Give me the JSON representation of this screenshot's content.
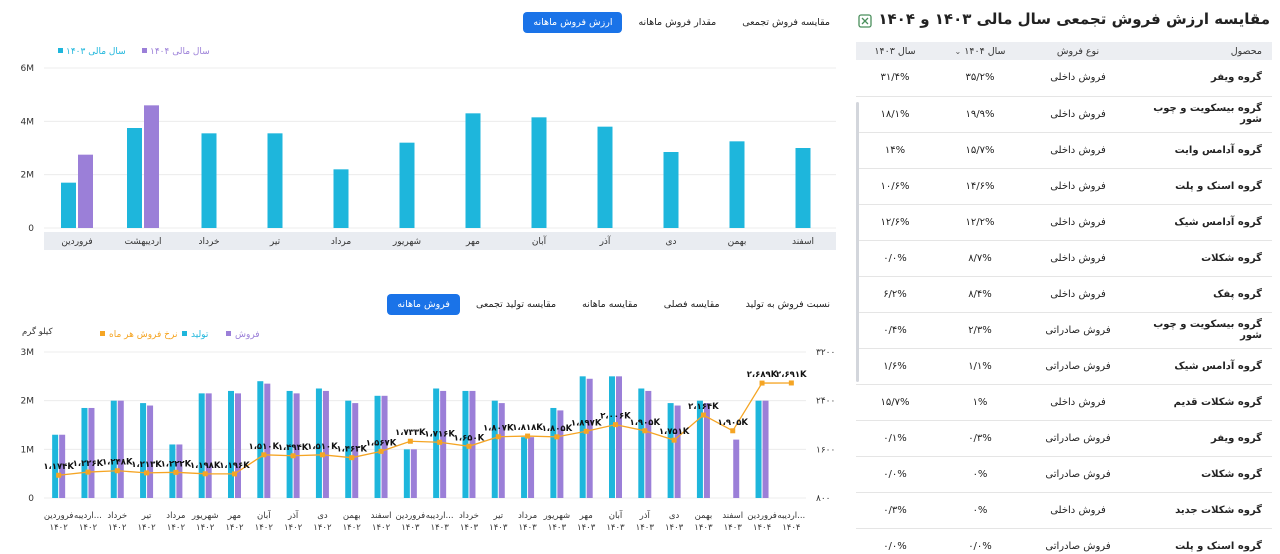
{
  "right": {
    "title": "مقایسه ارزش فروش تجمعی سال مالی ۱۴۰۳ و ۱۴۰۴",
    "headers": {
      "product": "محصول",
      "type": "نوع فروش",
      "y1404": "سال ۱۴۰۴",
      "y1403": "سال ۱۴۰۳"
    },
    "rows": [
      {
        "product": "گروه ویفر",
        "type": "فروش داخلی",
        "y1404": "۳۵/۲%",
        "y1403": "۳۱/۴%"
      },
      {
        "product": "گروه بیسکویت و چوب شور",
        "type": "فروش داخلی",
        "y1404": "۱۹/۹%",
        "y1403": "۱۸/۱%"
      },
      {
        "product": "گروه آدامس وایت",
        "type": "فروش داخلی",
        "y1404": "۱۵/۷%",
        "y1403": "۱۴%"
      },
      {
        "product": "گروه اسنک و پلت",
        "type": "فروش داخلی",
        "y1404": "۱۴/۶%",
        "y1403": "۱۰/۶%"
      },
      {
        "product": "گروه آدامس شیک",
        "type": "فروش داخلی",
        "y1404": "۱۲/۲%",
        "y1403": "۱۲/۶%"
      },
      {
        "product": "گروه شکلات",
        "type": "فروش داخلی",
        "y1404": "۸/۷%",
        "y1403": "۰/۰%"
      },
      {
        "product": "گروه پفک",
        "type": "فروش داخلی",
        "y1404": "۸/۴%",
        "y1403": "۶/۲%"
      },
      {
        "product": "گروه بیسکویت و چوب شور",
        "type": "فروش صادراتی",
        "y1404": "۲/۳%",
        "y1403": "۰/۴%"
      },
      {
        "product": "گروه آدامس شیک",
        "type": "فروش صادراتی",
        "y1404": "۱/۱%",
        "y1403": "۱/۶%"
      },
      {
        "product": "گروه شکلات قدیم",
        "type": "فروش داخلی",
        "y1404": "۱%",
        "y1403": "۱۵/۷%"
      },
      {
        "product": "گروه ویفر",
        "type": "فروش صادراتی",
        "y1404": "۰/۳%",
        "y1403": "۰/۱%"
      },
      {
        "product": "گروه شکلات",
        "type": "فروش صادراتی",
        "y1404": "۰%",
        "y1403": "۰/۰%"
      },
      {
        "product": "گروه شکلات جدید",
        "type": "فروش داخلی",
        "y1404": "۰%",
        "y1403": "۰/۳%"
      },
      {
        "product": "گروه اسنک و پلت",
        "type": "فروش صادراتی",
        "y1404": "۰/۰%",
        "y1403": "۰/۰%"
      }
    ]
  },
  "top_tabs": [
    {
      "label": "ارزش فروش ماهانه",
      "active": true
    },
    {
      "label": "مقدار فروش ماهانه",
      "active": false
    },
    {
      "label": "مقایسه فروش تجمعی",
      "active": false
    }
  ],
  "bottom_tabs": [
    {
      "label": "فروش ماهانه",
      "active": true
    },
    {
      "label": "مقایسه تولید تجمعی",
      "active": false
    },
    {
      "label": "مقایسه ماهانه",
      "active": false
    },
    {
      "label": "مقایسه فصلی",
      "active": false
    },
    {
      "label": "نسبت فروش به تولید",
      "active": false
    }
  ],
  "colors": {
    "cyan": "#1eb6dc",
    "purple": "#9b7fd8",
    "orange": "#f5a524",
    "accent": "#1a73e8"
  },
  "chart_data": [
    {
      "type": "bar",
      "categories": [
        "فروردین",
        "اردیبهشت",
        "خرداد",
        "تیر",
        "مرداد",
        "شهریور",
        "مهر",
        "آبان",
        "آذر",
        "دی",
        "بهمن",
        "اسفند"
      ],
      "series": [
        {
          "name": "سال مالی ۱۴۰۳",
          "color": "#1eb6dc",
          "values": [
            1.7,
            3.75,
            3.55,
            3.55,
            2.2,
            3.2,
            4.3,
            4.15,
            3.8,
            2.85,
            3.25,
            3.0
          ]
        },
        {
          "name": "سال مالی ۱۴۰۴",
          "color": "#9b7fd8",
          "values": [
            2.75,
            4.6,
            null,
            null,
            null,
            null,
            null,
            null,
            null,
            null,
            null,
            null
          ]
        }
      ],
      "yticks": [
        "0",
        "2M",
        "4M",
        "6M"
      ],
      "ylim": [
        0,
        6
      ]
    },
    {
      "type": "bar",
      "categories": [
        [
          "فروردین",
          "۱۴۰۲"
        ],
        [
          "اردیبه...",
          "۱۴۰۲"
        ],
        [
          "خرداد",
          "۱۴۰۲"
        ],
        [
          "تیر",
          "۱۴۰۲"
        ],
        [
          "مرداد",
          "۱۴۰۲"
        ],
        [
          "شهریور",
          "۱۴۰۲"
        ],
        [
          "مهر",
          "۱۴۰۲"
        ],
        [
          "آبان",
          "۱۴۰۲"
        ],
        [
          "آذر",
          "۱۴۰۲"
        ],
        [
          "دی",
          "۱۴۰۲"
        ],
        [
          "بهمن",
          "۱۴۰۲"
        ],
        [
          "اسفند",
          "۱۴۰۲"
        ],
        [
          "فروردین",
          "۱۴۰۳"
        ],
        [
          "اردیبه...",
          "۱۴۰۳"
        ],
        [
          "خرداد",
          "۱۴۰۳"
        ],
        [
          "تیر",
          "۱۴۰۳"
        ],
        [
          "مرداد",
          "۱۴۰۳"
        ],
        [
          "شهریور",
          "۱۴۰۳"
        ],
        [
          "مهر",
          "۱۴۰۳"
        ],
        [
          "آبان",
          "۱۴۰۳"
        ],
        [
          "آذر",
          "۱۴۰۳"
        ],
        [
          "دی",
          "۱۴۰۳"
        ],
        [
          "بهمن",
          "۱۴۰۳"
        ],
        [
          "اسفند",
          "۱۴۰۳"
        ],
        [
          "فروردین",
          "۱۴۰۴"
        ],
        [
          "اردیبه...",
          "۱۴۰۴"
        ]
      ],
      "series": [
        {
          "name": "فروش",
          "color": "#9b7fd8",
          "values": [
            1.3,
            1.85,
            2.0,
            1.9,
            1.1,
            2.15,
            2.15,
            2.35,
            2.15,
            2.2,
            1.95,
            2.1,
            1.0,
            2.2,
            2.2,
            1.95,
            1.25,
            1.8,
            2.45,
            2.5,
            2.2,
            1.9,
            1.95,
            1.2,
            2.0,
            null
          ]
        },
        {
          "name": "تولید",
          "color": "#1eb6dc",
          "values": [
            1.3,
            1.85,
            2.0,
            1.95,
            1.1,
            2.15,
            2.2,
            2.4,
            2.2,
            2.25,
            2.0,
            2.1,
            1.0,
            2.25,
            2.2,
            2.0,
            1.25,
            1.85,
            2.5,
            2.5,
            2.25,
            1.95,
            2.0,
            null,
            2.0,
            null
          ]
        },
        {
          "name": "نرخ فروش هر ماه",
          "color": "#f5a524",
          "axis": "right",
          "values": [
            1174,
            1226,
            1248,
            1213,
            1222,
            1198,
            1196,
            1510,
            1494,
            1510,
            1463,
            1567,
            1733,
            1716,
            1650,
            1807,
            1818,
            1805,
            1897,
            2006,
            1905,
            1751,
            2164,
            1905,
            2689,
            2691
          ],
          "labels": [
            "۱،۱۷۴K",
            "۱،۲۲۶K",
            "۱،۲۴۸K",
            "۱،۲۱۳K",
            "۱،۲۲۲K",
            "۱،۱۹۸K",
            "۱،۱۹۶K",
            "۱،۵۱۰K",
            "۱،۴۹۴K",
            "۱،۵۱۰K",
            "۱،۴۶۳K",
            "۱،۵۶۷K",
            "۱،۷۳۳K",
            "۱،۷۱۶K",
            "۱،۶۵۰K",
            "۱،۸۰۷K",
            "۱،۸۱۸K",
            "۱،۸۰۵K",
            "۱،۸۹۷K",
            "۲،۰۰۶K",
            "۱،۹۰۵K",
            "۱،۷۵۱K",
            "۲،۱۶۴K",
            "۱،۹۰۵K",
            "۲،۶۸۹K",
            "۲،۶۹۱K"
          ]
        }
      ],
      "yticks_left": [
        "0",
        "1M",
        "2M",
        "3M"
      ],
      "ylim_left": [
        0,
        3
      ],
      "yticks_right": [
        "۸۰۰",
        "۱۶۰۰",
        "۲۴۰۰",
        "۳۲۰۰"
      ],
      "ylim_right": [
        800,
        3200
      ],
      "unit_label": "کیلو گرم"
    }
  ]
}
